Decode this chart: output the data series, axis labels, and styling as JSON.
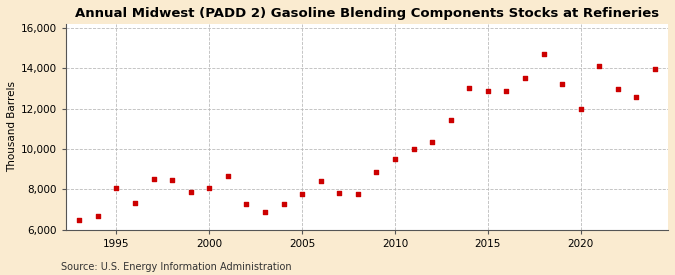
{
  "title": "Annual Midwest (PADD 2) Gasoline Blending Components Stocks at Refineries",
  "ylabel": "Thousand Barrels",
  "source": "Source: U.S. Energy Information Administration",
  "background_color": "#faebd0",
  "plot_bg_color": "#ffffff",
  "marker_color": "#cc0000",
  "xlim": [
    1992.3,
    2024.7
  ],
  "ylim": [
    6000,
    16200
  ],
  "yticks": [
    6000,
    8000,
    10000,
    12000,
    14000,
    16000
  ],
  "ytick_labels": [
    "6,000",
    "8,000",
    "10,000",
    "12,000",
    "14,000",
    "16,000"
  ],
  "xticks": [
    1995,
    2000,
    2005,
    2010,
    2015,
    2020
  ],
  "data": [
    [
      1993,
      6500
    ],
    [
      1994,
      6700
    ],
    [
      1995,
      8050
    ],
    [
      1996,
      7350
    ],
    [
      1997,
      8500
    ],
    [
      1998,
      8450
    ],
    [
      1999,
      7850
    ],
    [
      2000,
      8050
    ],
    [
      2001,
      8650
    ],
    [
      2002,
      7300
    ],
    [
      2003,
      6900
    ],
    [
      2004,
      7300
    ],
    [
      2005,
      7750
    ],
    [
      2006,
      8400
    ],
    [
      2007,
      7800
    ],
    [
      2008,
      7750
    ],
    [
      2009,
      8850
    ],
    [
      2010,
      9500
    ],
    [
      2011,
      10000
    ],
    [
      2012,
      10350
    ],
    [
      2013,
      11450
    ],
    [
      2014,
      13000
    ],
    [
      2015,
      12900
    ],
    [
      2016,
      12900
    ],
    [
      2017,
      13500
    ],
    [
      2018,
      14700
    ],
    [
      2019,
      13200
    ],
    [
      2020,
      12000
    ],
    [
      2021,
      14100
    ],
    [
      2022,
      12950
    ],
    [
      2023,
      12600
    ],
    [
      2024,
      13950
    ]
  ]
}
